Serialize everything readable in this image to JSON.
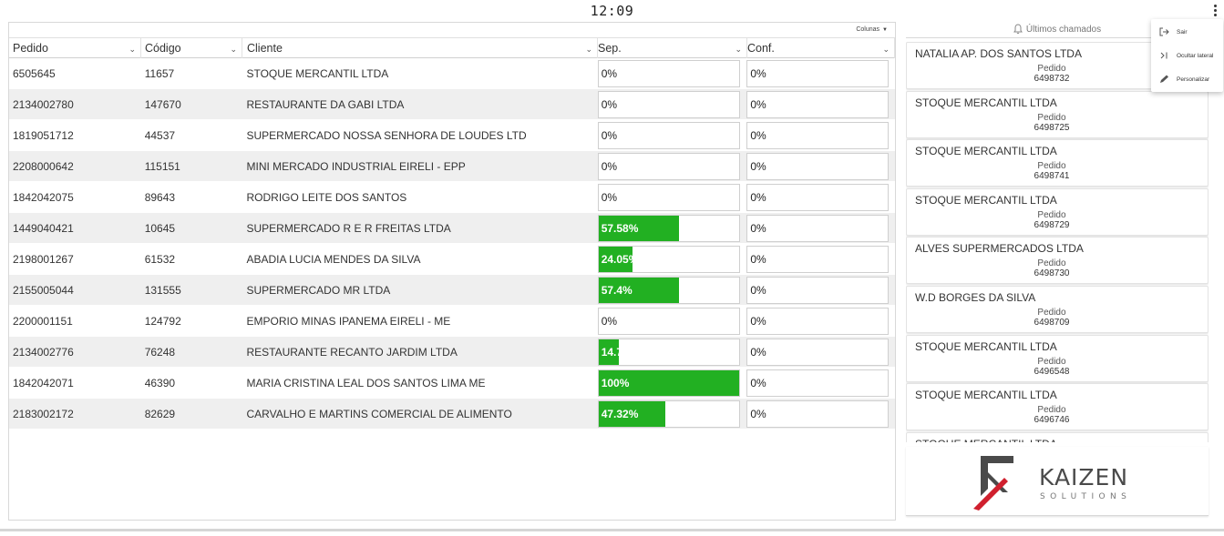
{
  "clock": "12:09",
  "table": {
    "columns_button": "Colunas",
    "headers": [
      "Pedido",
      "Código",
      "Cliente",
      "Sep.",
      "Conf."
    ],
    "rows": [
      {
        "pedido": "6505645",
        "codigo": "11657",
        "cliente": "STOQUE MERCANTIL LTDA",
        "sep_label": "0%",
        "sep_pct": 0,
        "conf_label": "0%",
        "conf_pct": 0
      },
      {
        "pedido": "2134002780",
        "codigo": "147670",
        "cliente": "RESTAURANTE DA GABI LTDA",
        "sep_label": "0%",
        "sep_pct": 0,
        "conf_label": "0%",
        "conf_pct": 0
      },
      {
        "pedido": "1819051712",
        "codigo": "44537",
        "cliente": "SUPERMERCADO NOSSA SENHORA DE LOUDES LTD",
        "sep_label": "0%",
        "sep_pct": 0,
        "conf_label": "0%",
        "conf_pct": 0
      },
      {
        "pedido": "2208000642",
        "codigo": "115151",
        "cliente": "MINI MERCADO INDUSTRIAL EIRELI - EPP",
        "sep_label": "0%",
        "sep_pct": 0,
        "conf_label": "0%",
        "conf_pct": 0
      },
      {
        "pedido": "1842042075",
        "codigo": "89643",
        "cliente": "RODRIGO LEITE DOS SANTOS",
        "sep_label": "0%",
        "sep_pct": 0,
        "conf_label": "0%",
        "conf_pct": 0
      },
      {
        "pedido": "1449040421",
        "codigo": "10645",
        "cliente": "SUPERMERCADO R E R FREITAS LTDA",
        "sep_label": "57.58%",
        "sep_pct": 57.58,
        "conf_label": "0%",
        "conf_pct": 0
      },
      {
        "pedido": "2198001267",
        "codigo": "61532",
        "cliente": "ABADIA LUCIA MENDES DA SILVA",
        "sep_label": "24.05%",
        "sep_pct": 24.05,
        "conf_label": "0%",
        "conf_pct": 0
      },
      {
        "pedido": "2155005044",
        "codigo": "131555",
        "cliente": "SUPERMERCADO MR LTDA",
        "sep_label": "57.4%",
        "sep_pct": 57.4,
        "conf_label": "0%",
        "conf_pct": 0
      },
      {
        "pedido": "2200001151",
        "codigo": "124792",
        "cliente": "EMPORIO MINAS IPANEMA EIRELI - ME",
        "sep_label": "0%",
        "sep_pct": 0,
        "conf_label": "0%",
        "conf_pct": 0
      },
      {
        "pedido": "2134002776",
        "codigo": "76248",
        "cliente": "RESTAURANTE RECANTO JARDIM LTDA",
        "sep_label": "14.7",
        "sep_pct": 14.7,
        "conf_label": "0%",
        "conf_pct": 0
      },
      {
        "pedido": "1842042071",
        "codigo": "46390",
        "cliente": "MARIA CRISTINA LEAL DOS SANTOS LIMA ME",
        "sep_label": "100%",
        "sep_pct": 100,
        "conf_label": "0%",
        "conf_pct": 0
      },
      {
        "pedido": "2183002172",
        "codigo": "82629",
        "cliente": "CARVALHO E MARTINS COMERCIAL DE ALIMENTO",
        "sep_label": "47.32%",
        "sep_pct": 47.32,
        "conf_label": "0%",
        "conf_pct": 0
      }
    ]
  },
  "sidebar": {
    "title": "Últimos chamados",
    "card_label": "Pedido",
    "cards": [
      {
        "cliente": "NATALIA AP. DOS SANTOS LTDA",
        "pedido": "6498732"
      },
      {
        "cliente": "STOQUE MERCANTIL LTDA",
        "pedido": "6498725"
      },
      {
        "cliente": "STOQUE MERCANTIL LTDA",
        "pedido": "6498741"
      },
      {
        "cliente": "STOQUE MERCANTIL LTDA",
        "pedido": "6498729"
      },
      {
        "cliente": "ALVES SUPERMERCADOS LTDA",
        "pedido": "6498730"
      },
      {
        "cliente": "W.D BORGES DA SILVA",
        "pedido": "6498709"
      },
      {
        "cliente": "STOQUE MERCANTIL LTDA",
        "pedido": "6496548"
      },
      {
        "cliente": "STOQUE MERCANTIL LTDA",
        "pedido": "6496746"
      },
      {
        "cliente": "STOQUE MERCANTIL LTDA",
        "pedido": ""
      }
    ],
    "logo": {
      "name": "KAIZEN",
      "sub": "SOLUTIONS"
    }
  },
  "menu": {
    "items": [
      {
        "label": "Sair",
        "icon": "logout-icon"
      },
      {
        "label": "Ocultar lateral",
        "icon": "hide-sidebar-icon"
      },
      {
        "label": "Personalizar",
        "icon": "pencil-icon"
      }
    ]
  },
  "colors": {
    "progress": "#22b022",
    "logo_red": "#d0202e",
    "logo_gray": "#4a4a4a"
  }
}
